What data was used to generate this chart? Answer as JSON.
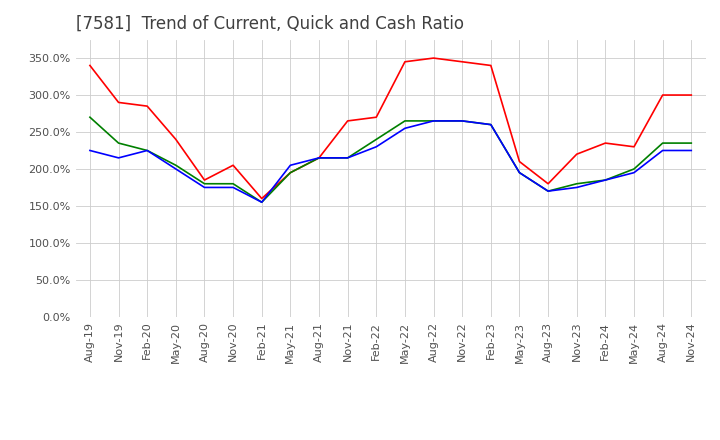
{
  "title": "[7581]  Trend of Current, Quick and Cash Ratio",
  "x_labels": [
    "Aug-19",
    "Nov-19",
    "Feb-20",
    "May-20",
    "Aug-20",
    "Nov-20",
    "Feb-21",
    "May-21",
    "Aug-21",
    "Nov-21",
    "Feb-22",
    "May-22",
    "Aug-22",
    "Nov-22",
    "Feb-23",
    "May-23",
    "Aug-23",
    "Nov-23",
    "Feb-24",
    "May-24",
    "Aug-24",
    "Nov-24"
  ],
  "current_ratio": [
    340,
    290,
    285,
    240,
    185,
    205,
    160,
    195,
    215,
    265,
    270,
    345,
    350,
    345,
    340,
    210,
    180,
    220,
    235,
    230,
    300,
    300
  ],
  "quick_ratio": [
    270,
    235,
    225,
    205,
    180,
    180,
    155,
    195,
    215,
    215,
    240,
    265,
    265,
    265,
    260,
    195,
    170,
    180,
    185,
    200,
    235,
    235
  ],
  "cash_ratio": [
    225,
    215,
    225,
    200,
    175,
    175,
    155,
    205,
    215,
    215,
    230,
    255,
    265,
    265,
    260,
    195,
    170,
    175,
    185,
    195,
    225,
    225
  ],
  "current_color": "#ff0000",
  "quick_color": "#008000",
  "cash_color": "#0000ff",
  "ylim": [
    0,
    375
  ],
  "yticks": [
    0,
    50,
    100,
    150,
    200,
    250,
    300,
    350
  ],
  "background_color": "#ffffff",
  "grid_color": "#cccccc",
  "title_color": "#404040",
  "title_fontsize": 12,
  "legend_fontsize": 9,
  "tick_fontsize": 8
}
